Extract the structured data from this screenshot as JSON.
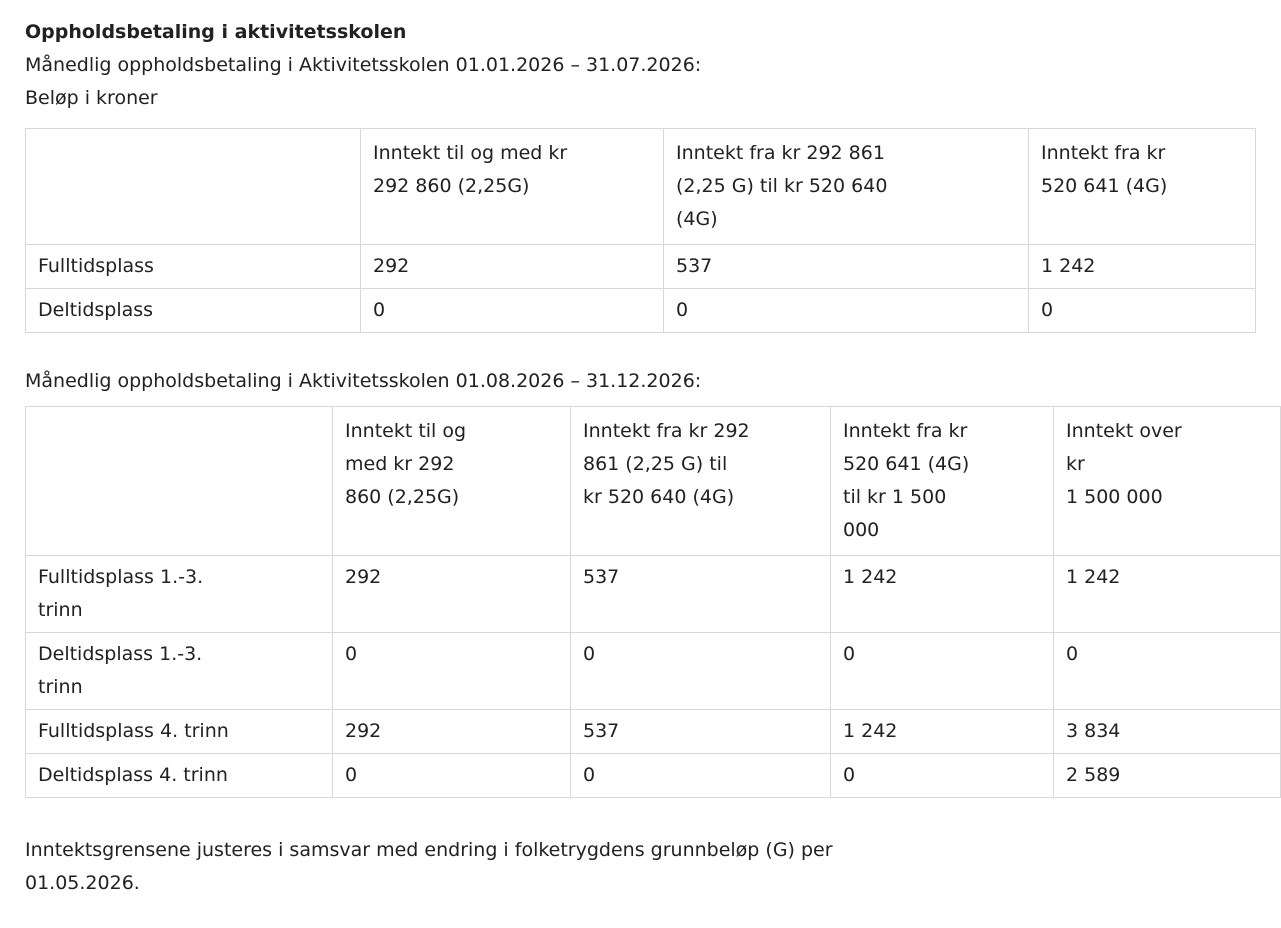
{
  "page": {
    "title": "Oppholdsbetaling i aktivitetsskolen",
    "intro_period_1": "Månedlig oppholdsbetaling i Aktivitetsskolen 01.01.2026 – 31.07.2026:",
    "amount_unit_note": "Beløp i kroner",
    "intro_period_2": "Månedlig oppholdsbetaling i Aktivitetsskolen 01.08.2026 – 31.12.2026:",
    "footer_note": "Inntektsgrensene justeres i samsvar med endring i folketrygdens grunnbeløp (G) per\n01.05.2026."
  },
  "table_period_1": {
    "headers": [
      "",
      "Inntekt til og med kr\n292 860 (2,25G)",
      "Inntekt fra kr 292 861\n(2,25 G) til kr 520 640\n(4G)",
      "Inntekt fra kr\n520 641 (4G)"
    ],
    "rows": [
      {
        "label": "Fulltidsplass",
        "values": [
          "292",
          "537",
          "1 242"
        ]
      },
      {
        "label": "Deltidsplass",
        "values": [
          "0",
          "0",
          "0"
        ]
      }
    ]
  },
  "table_period_2": {
    "headers": [
      "",
      "Inntekt til og\nmed kr 292\n860 (2,25G)",
      "Inntekt fra kr 292\n861 (2,25 G) til\nkr 520 640 (4G)",
      "Inntekt fra kr\n520 641 (4G)\ntil kr 1 500\n000",
      "Inntekt over\nkr\n1 500 000"
    ],
    "rows": [
      {
        "label": "Fulltidsplass 1.-3.\ntrinn",
        "values": [
          "292",
          "537",
          "1 242",
          "1 242"
        ]
      },
      {
        "label": "Deltidsplass 1.-3.\ntrinn",
        "values": [
          "0",
          "0",
          "0",
          "0"
        ]
      },
      {
        "label": "Fulltidsplass 4. trinn",
        "values": [
          "292",
          "537",
          "1 242",
          "3 834"
        ]
      },
      {
        "label": "Deltidsplass 4. trinn",
        "values": [
          "0",
          "0",
          "0",
          "2 589"
        ]
      }
    ]
  }
}
